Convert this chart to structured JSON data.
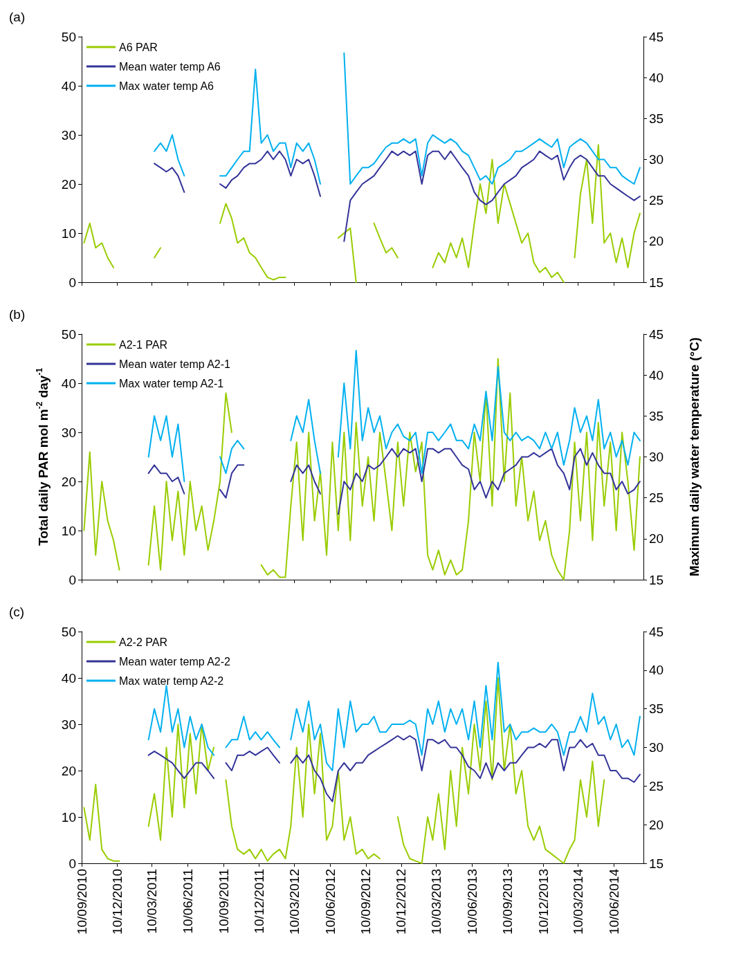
{
  "chart_data": [
    {
      "type": "line",
      "title": "(a)",
      "x": [
        "2010-09-16",
        "2010-10-01",
        "2010-10-16",
        "2010-11-01",
        "2010-11-16",
        "2010-12-01",
        "2010-12-16",
        "2011-01-01",
        "2011-01-16",
        "2011-02-01",
        "2011-02-16",
        "2011-03-01",
        "2011-03-16",
        "2011-04-01",
        "2011-04-16",
        "2011-05-01",
        "2011-05-16",
        "2011-06-01",
        "2011-06-16",
        "2011-07-01",
        "2011-07-16",
        "2011-08-01",
        "2011-08-16",
        "2011-09-01",
        "2011-09-16",
        "2011-10-01",
        "2011-10-16",
        "2011-11-01",
        "2011-11-16",
        "2011-12-01",
        "2011-12-16",
        "2012-01-01",
        "2012-01-16",
        "2012-02-01",
        "2012-02-16",
        "2012-03-01",
        "2012-03-16",
        "2012-04-01",
        "2012-04-16",
        "2012-05-01",
        "2012-05-16",
        "2012-06-01",
        "2012-06-16",
        "2012-07-01",
        "2012-07-16",
        "2012-08-01",
        "2012-08-16",
        "2012-09-01",
        "2012-09-16",
        "2012-10-01",
        "2012-10-16",
        "2012-11-01",
        "2012-11-16",
        "2012-12-01",
        "2012-12-16",
        "2013-01-01",
        "2013-01-16",
        "2013-02-01",
        "2013-02-16",
        "2013-03-01",
        "2013-03-16",
        "2013-04-01",
        "2013-04-16",
        "2013-05-01",
        "2013-05-16",
        "2013-06-01",
        "2013-06-16",
        "2013-07-01",
        "2013-07-16",
        "2013-08-01",
        "2013-08-16",
        "2013-09-01",
        "2013-09-16",
        "2013-10-01",
        "2013-10-16",
        "2013-11-01",
        "2013-11-16",
        "2013-12-01",
        "2013-12-16",
        "2014-01-01",
        "2014-01-16",
        "2014-02-01",
        "2014-02-16",
        "2014-03-01",
        "2014-03-16",
        "2014-04-01",
        "2014-04-16",
        "2014-05-01",
        "2014-05-16",
        "2014-06-01",
        "2014-06-16",
        "2014-07-01",
        "2014-07-16",
        "2014-08-01",
        "2014-08-16"
      ],
      "xlim": [
        "2010-09-10",
        "2014-08-25"
      ],
      "xticks": [
        {
          "value": "2010-09-10",
          "label": null
        },
        {
          "value": "2010-12-10",
          "label": null
        },
        {
          "value": "2011-03-10",
          "label": null
        },
        {
          "value": "2011-06-10",
          "label": null
        },
        {
          "value": "2011-09-10",
          "label": null
        },
        {
          "value": "2011-12-10",
          "label": null
        },
        {
          "value": "2012-03-10",
          "label": null
        },
        {
          "value": "2012-06-10",
          "label": null
        },
        {
          "value": "2012-09-10",
          "label": null
        },
        {
          "value": "2012-12-10",
          "label": null
        },
        {
          "value": "2013-03-10",
          "label": null
        },
        {
          "value": "2013-06-10",
          "label": null
        },
        {
          "value": "2013-09-10",
          "label": null
        },
        {
          "value": "2013-12-10",
          "label": null
        },
        {
          "value": "2014-03-10",
          "label": null
        },
        {
          "value": "2014-06-10",
          "label": null
        }
      ],
      "ylim": [
        0,
        50
      ],
      "yticks": [
        0,
        10,
        20,
        30,
        40,
        50
      ],
      "y2lim": [
        15,
        45
      ],
      "y2ticks": [
        15,
        20,
        25,
        30,
        35,
        40,
        45
      ],
      "legend": "top left",
      "marker": "none",
      "grid": false,
      "tick_labels": "y",
      "series": [
        {
          "name": "A6 PAR",
          "color": "#99cc00",
          "values": [
            8,
            12,
            7,
            8,
            5,
            3,
            null,
            null,
            null,
            null,
            null,
            null,
            5,
            7,
            null,
            null,
            null,
            null,
            null,
            null,
            null,
            null,
            null,
            12,
            16,
            13,
            8,
            9,
            6,
            5,
            3,
            1,
            0.5,
            1,
            1,
            null,
            null,
            null,
            null,
            null,
            null,
            null,
            null,
            9,
            10,
            11,
            0,
            null,
            null,
            12,
            9,
            6,
            7,
            5,
            null,
            null,
            null,
            null,
            null,
            3,
            6,
            4,
            8,
            5,
            9,
            3,
            12,
            20,
            14,
            25,
            12,
            20,
            16,
            12,
            8,
            10,
            4,
            2,
            3,
            1,
            2,
            0,
            null,
            5,
            18,
            25,
            12,
            28,
            8,
            10,
            4,
            9,
            3,
            10,
            14
          ]
        },
        {
          "name": "Mean water temp A6",
          "color": "#333399",
          "axis": "y2",
          "values": [
            null,
            null,
            null,
            null,
            null,
            null,
            null,
            null,
            null,
            null,
            null,
            null,
            29.5,
            29,
            28.5,
            29,
            28,
            26,
            null,
            null,
            null,
            null,
            null,
            27,
            26.5,
            27.5,
            28,
            29,
            29.5,
            29.5,
            30,
            31,
            30,
            31,
            30,
            28,
            30,
            29.5,
            30,
            28,
            25.5,
            null,
            null,
            null,
            20,
            25,
            26,
            27,
            27.5,
            28,
            29,
            30,
            31,
            30.5,
            31,
            30.5,
            31,
            27,
            30.5,
            31,
            31,
            30,
            31,
            30,
            29,
            28,
            26,
            25,
            24.5,
            25,
            26,
            27,
            27.5,
            28,
            29,
            29.5,
            30,
            31,
            30.5,
            30,
            30.5,
            27.5,
            29,
            30,
            30.5,
            30,
            29,
            28,
            28,
            27,
            26.5,
            26,
            25.5,
            25,
            25.5
          ]
        },
        {
          "name": "Max water temp A6",
          "color": "#00b0f0",
          "axis": "y2",
          "values": [
            null,
            null,
            null,
            null,
            null,
            null,
            null,
            null,
            null,
            null,
            null,
            null,
            31,
            32,
            31,
            33,
            30,
            28,
            null,
            null,
            null,
            null,
            null,
            28,
            28,
            29,
            30,
            31,
            31,
            41,
            32,
            33,
            31,
            32,
            32,
            29,
            32,
            31,
            32,
            30,
            27,
            null,
            null,
            null,
            43,
            27,
            28,
            29,
            29,
            29.5,
            30.5,
            31.5,
            32,
            32,
            32.5,
            32,
            32.5,
            28,
            32,
            33,
            32.5,
            32,
            32.5,
            32,
            31,
            30.5,
            29,
            27.5,
            28,
            27,
            29,
            29.5,
            30,
            31,
            31,
            31.5,
            32,
            32.5,
            32,
            31.5,
            32.5,
            29,
            31.5,
            32,
            32.5,
            32,
            31,
            30,
            30,
            29,
            29,
            28,
            27.5,
            27,
            29
          ]
        }
      ]
    },
    {
      "type": "line",
      "title": "(b)",
      "ylabel": "Total daily PAR mol m$^{-2}$ day$^{-1}$",
      "y2label": "Maximum daily water temperature (°C)",
      "x": [
        "2010-09-16",
        "2010-10-01",
        "2010-10-16",
        "2010-11-01",
        "2010-11-16",
        "2010-12-01",
        "2010-12-16",
        "2011-01-01",
        "2011-01-16",
        "2011-02-01",
        "2011-02-16",
        "2011-03-01",
        "2011-03-16",
        "2011-04-01",
        "2011-04-16",
        "2011-05-01",
        "2011-05-16",
        "2011-06-01",
        "2011-06-16",
        "2011-07-01",
        "2011-07-16",
        "2011-08-01",
        "2011-08-16",
        "2011-09-01",
        "2011-09-16",
        "2011-10-01",
        "2011-10-16",
        "2011-11-01",
        "2011-11-16",
        "2011-12-01",
        "2011-12-16",
        "2012-01-01",
        "2012-01-16",
        "2012-02-01",
        "2012-02-16",
        "2012-03-01",
        "2012-03-16",
        "2012-04-01",
        "2012-04-16",
        "2012-05-01",
        "2012-05-16",
        "2012-06-01",
        "2012-06-16",
        "2012-07-01",
        "2012-07-16",
        "2012-08-01",
        "2012-08-16",
        "2012-09-01",
        "2012-09-16",
        "2012-10-01",
        "2012-10-16",
        "2012-11-01",
        "2012-11-16",
        "2012-12-01",
        "2012-12-16",
        "2013-01-01",
        "2013-01-16",
        "2013-02-01",
        "2013-02-16",
        "2013-03-01",
        "2013-03-16",
        "2013-04-01",
        "2013-04-16",
        "2013-05-01",
        "2013-05-16",
        "2013-06-01",
        "2013-06-16",
        "2013-07-01",
        "2013-07-16",
        "2013-08-01",
        "2013-08-16",
        "2013-09-01",
        "2013-09-16",
        "2013-10-01",
        "2013-10-16",
        "2013-11-01",
        "2013-11-16",
        "2013-12-01",
        "2013-12-16",
        "2014-01-01",
        "2014-01-16",
        "2014-02-01",
        "2014-02-16",
        "2014-03-01",
        "2014-03-16",
        "2014-04-01",
        "2014-04-16",
        "2014-05-01",
        "2014-05-16",
        "2014-06-01",
        "2014-06-16",
        "2014-07-01",
        "2014-07-16",
        "2014-08-01",
        "2014-08-16"
      ],
      "xlim": [
        "2010-09-10",
        "2014-08-25"
      ],
      "xticks": [
        {
          "value": "2010-09-10",
          "label": null
        },
        {
          "value": "2010-12-10",
          "label": null
        },
        {
          "value": "2011-03-10",
          "label": null
        },
        {
          "value": "2011-06-10",
          "label": null
        },
        {
          "value": "2011-09-10",
          "label": null
        },
        {
          "value": "2011-12-10",
          "label": null
        },
        {
          "value": "2012-03-10",
          "label": null
        },
        {
          "value": "2012-06-10",
          "label": null
        },
        {
          "value": "2012-09-10",
          "label": null
        },
        {
          "value": "2012-12-10",
          "label": null
        },
        {
          "value": "2013-03-10",
          "label": null
        },
        {
          "value": "2013-06-10",
          "label": null
        },
        {
          "value": "2013-09-10",
          "label": null
        },
        {
          "value": "2013-12-10",
          "label": null
        },
        {
          "value": "2014-03-10",
          "label": null
        },
        {
          "value": "2014-06-10",
          "label": null
        }
      ],
      "ylim": [
        0,
        50
      ],
      "yticks": [
        0,
        10,
        20,
        30,
        40,
        50
      ],
      "y2lim": [
        15,
        45
      ],
      "y2ticks": [
        15,
        20,
        25,
        30,
        35,
        40,
        45
      ],
      "legend": "top left",
      "marker": "none",
      "grid": false,
      "tick_labels": "y",
      "series": [
        {
          "name": "A2-1 PAR",
          "color": "#99cc00",
          "values": [
            10,
            26,
            5,
            20,
            12,
            8,
            2,
            null,
            null,
            null,
            null,
            3,
            15,
            2,
            20,
            8,
            18,
            5,
            20,
            10,
            15,
            6,
            12,
            20,
            38,
            30,
            null,
            null,
            null,
            null,
            3,
            1,
            2,
            0.5,
            0.5,
            15,
            28,
            8,
            30,
            12,
            22,
            5,
            28,
            10,
            30,
            8,
            32,
            15,
            25,
            12,
            30,
            20,
            10,
            28,
            15,
            30,
            22,
            28,
            5,
            2,
            6,
            1,
            4,
            1,
            2,
            12,
            30,
            20,
            38,
            15,
            45,
            20,
            38,
            15,
            25,
            12,
            18,
            8,
            12,
            5,
            2,
            0,
            10,
            28,
            12,
            30,
            8,
            32,
            15,
            28,
            10,
            30,
            20,
            6,
            25
          ]
        },
        {
          "name": "Mean water temp A2-1",
          "color": "#333399",
          "axis": "y2",
          "values": [
            null,
            null,
            null,
            null,
            null,
            null,
            null,
            null,
            null,
            null,
            null,
            28,
            29,
            28,
            28,
            27,
            27.5,
            25.5,
            null,
            null,
            null,
            null,
            null,
            26,
            25,
            28,
            29,
            29,
            null,
            null,
            null,
            null,
            null,
            null,
            null,
            27,
            29,
            28,
            29,
            27,
            25.5,
            null,
            null,
            23,
            27,
            26,
            28,
            27,
            29,
            28.5,
            29,
            30,
            31,
            30,
            31,
            30.5,
            31,
            27,
            31,
            31,
            30.5,
            31,
            31,
            30,
            29,
            28.5,
            26,
            27,
            25,
            27,
            26,
            28,
            28.5,
            29,
            30,
            30,
            30.5,
            30,
            30.5,
            31,
            29,
            28,
            26,
            30,
            31,
            29,
            30.5,
            29,
            28,
            28,
            26,
            27,
            25.5,
            26,
            27
          ]
        },
        {
          "name": "Max water temp A2-1",
          "color": "#00b0f0",
          "axis": "y2",
          "values": [
            null,
            null,
            null,
            null,
            null,
            null,
            null,
            null,
            null,
            null,
            null,
            30,
            35,
            32,
            35,
            30,
            34,
            27,
            null,
            null,
            null,
            null,
            null,
            30,
            28,
            31,
            32,
            31,
            null,
            null,
            null,
            null,
            null,
            null,
            null,
            32,
            35,
            33,
            37,
            32,
            28,
            null,
            null,
            30,
            39,
            31,
            43,
            32,
            36,
            33,
            35,
            31,
            33,
            34,
            32.5,
            32,
            33,
            28,
            33,
            33,
            32,
            33,
            34,
            32,
            32,
            31,
            34,
            32,
            38,
            32,
            41,
            33,
            32,
            33,
            32,
            32.5,
            32,
            31,
            33,
            31,
            33,
            29,
            32,
            36,
            33,
            35,
            32,
            37,
            31,
            33,
            30,
            32,
            29,
            33,
            32
          ]
        }
      ]
    },
    {
      "type": "line",
      "title": "(c)",
      "x": [
        "2010-09-16",
        "2010-10-01",
        "2010-10-16",
        "2010-11-01",
        "2010-11-16",
        "2010-12-01",
        "2010-12-16",
        "2011-01-01",
        "2011-01-16",
        "2011-02-01",
        "2011-02-16",
        "2011-03-01",
        "2011-03-16",
        "2011-04-01",
        "2011-04-16",
        "2011-05-01",
        "2011-05-16",
        "2011-06-01",
        "2011-06-16",
        "2011-07-01",
        "2011-07-16",
        "2011-08-01",
        "2011-08-16",
        "2011-09-01",
        "2011-09-16",
        "2011-10-01",
        "2011-10-16",
        "2011-11-01",
        "2011-11-16",
        "2011-12-01",
        "2011-12-16",
        "2012-01-01",
        "2012-01-16",
        "2012-02-01",
        "2012-02-16",
        "2012-03-01",
        "2012-03-16",
        "2012-04-01",
        "2012-04-16",
        "2012-05-01",
        "2012-05-16",
        "2012-06-01",
        "2012-06-16",
        "2012-07-01",
        "2012-07-16",
        "2012-08-01",
        "2012-08-16",
        "2012-09-01",
        "2012-09-16",
        "2012-10-01",
        "2012-10-16",
        "2012-11-01",
        "2012-11-16",
        "2012-12-01",
        "2012-12-16",
        "2013-01-01",
        "2013-01-16",
        "2013-02-01",
        "2013-02-16",
        "2013-03-01",
        "2013-03-16",
        "2013-04-01",
        "2013-04-16",
        "2013-05-01",
        "2013-05-16",
        "2013-06-01",
        "2013-06-16",
        "2013-07-01",
        "2013-07-16",
        "2013-08-01",
        "2013-08-16",
        "2013-09-01",
        "2013-09-16",
        "2013-10-01",
        "2013-10-16",
        "2013-11-01",
        "2013-11-16",
        "2013-12-01",
        "2013-12-16",
        "2014-01-01",
        "2014-01-16",
        "2014-02-01",
        "2014-02-16",
        "2014-03-01",
        "2014-03-16",
        "2014-04-01",
        "2014-04-16",
        "2014-05-01",
        "2014-05-16",
        "2014-06-01",
        "2014-06-16",
        "2014-07-01",
        "2014-07-16",
        "2014-08-01",
        "2014-08-16"
      ],
      "xlim": [
        "2010-09-10",
        "2014-08-25"
      ],
      "xticks": [
        {
          "value": "2010-09-10",
          "label": "10/09/2010"
        },
        {
          "value": "2010-12-10",
          "label": "10/12/2010"
        },
        {
          "value": "2011-03-10",
          "label": "10/03/2011"
        },
        {
          "value": "2011-06-10",
          "label": "10/06/2011"
        },
        {
          "value": "2011-09-10",
          "label": "10/09/2011"
        },
        {
          "value": "2011-12-10",
          "label": "10/12/2011"
        },
        {
          "value": "2012-03-10",
          "label": "10/03/2012"
        },
        {
          "value": "2012-06-10",
          "label": "10/06/2012"
        },
        {
          "value": "2012-09-10",
          "label": "10/09/2012"
        },
        {
          "value": "2012-12-10",
          "label": "10/12/2012"
        },
        {
          "value": "2013-03-10",
          "label": "10/03/2013"
        },
        {
          "value": "2013-06-10",
          "label": "10/06/2013"
        },
        {
          "value": "2013-09-10",
          "label": "10/09/2013"
        },
        {
          "value": "2013-12-10",
          "label": "10/12/2013"
        },
        {
          "value": "2014-03-10",
          "label": "10/03/2014"
        },
        {
          "value": "2014-06-10",
          "label": "10/06/2014"
        }
      ],
      "ylim": [
        0,
        50
      ],
      "yticks": [
        0,
        10,
        20,
        30,
        40,
        50
      ],
      "y2lim": [
        15,
        45
      ],
      "y2ticks": [
        15,
        20,
        25,
        30,
        35,
        40,
        45
      ],
      "legend": "top left",
      "marker": "none",
      "grid": false,
      "series": [
        {
          "name": "A2-2 PAR",
          "color": "#99cc00",
          "values": [
            12,
            5,
            17,
            3,
            1,
            0.5,
            0.5,
            null,
            null,
            null,
            null,
            8,
            15,
            5,
            25,
            10,
            30,
            12,
            28,
            15,
            30,
            20,
            25,
            null,
            18,
            8,
            3,
            2,
            3,
            1,
            3,
            0.5,
            2,
            3,
            1,
            8,
            25,
            10,
            30,
            15,
            28,
            5,
            8,
            20,
            5,
            10,
            2,
            3,
            1,
            2,
            1,
            null,
            null,
            10,
            4,
            1,
            0.5,
            0,
            10,
            5,
            15,
            3,
            20,
            8,
            25,
            15,
            30,
            20,
            35,
            18,
            40,
            20,
            30,
            15,
            20,
            8,
            5,
            8,
            3,
            2,
            1,
            0,
            3,
            5,
            18,
            10,
            22,
            8,
            18,
            null,
            null,
            null,
            null,
            null,
            null
          ]
        },
        {
          "name": "Mean water temp A2-2",
          "color": "#333399",
          "axis": "y2",
          "values": [
            null,
            null,
            null,
            null,
            null,
            null,
            null,
            null,
            null,
            null,
            null,
            29,
            29.5,
            29,
            28.5,
            28,
            27,
            26,
            27,
            28,
            28,
            27,
            26,
            null,
            28,
            27,
            29,
            29,
            29.5,
            29,
            29.5,
            30,
            29,
            28,
            null,
            28,
            29,
            28,
            29,
            27,
            26,
            24,
            23,
            27,
            28,
            27,
            28,
            28,
            29,
            29.5,
            30,
            30.5,
            31,
            31.5,
            31,
            31.5,
            31,
            27,
            31,
            31,
            30.5,
            31,
            30,
            30,
            29,
            27.5,
            27,
            26,
            28,
            26,
            28,
            27,
            28,
            28,
            29,
            30,
            30,
            30.5,
            30,
            31,
            31,
            27,
            30,
            30,
            31,
            30,
            30.5,
            29,
            29,
            27,
            27,
            26,
            26,
            25.5,
            26.5
          ]
        },
        {
          "name": "Max water temp A2-2",
          "color": "#00b0f0",
          "axis": "y2",
          "values": [
            null,
            null,
            null,
            null,
            null,
            null,
            null,
            null,
            null,
            null,
            null,
            31,
            35,
            32,
            38,
            32,
            35,
            30,
            34,
            31,
            33,
            30,
            29,
            null,
            30,
            31,
            31,
            34,
            31,
            32,
            31,
            32,
            31,
            30,
            null,
            31,
            35,
            32,
            36,
            31,
            33,
            28,
            27,
            35,
            30,
            36,
            32,
            33,
            33,
            34,
            32,
            32,
            33,
            33,
            33,
            33.5,
            33,
            29,
            35,
            33,
            36,
            32,
            35,
            33,
            35,
            31,
            36,
            30,
            38,
            31,
            41,
            32,
            33,
            31,
            32,
            32,
            32.5,
            32,
            32,
            33,
            32,
            29,
            32,
            32,
            34,
            32,
            37,
            33,
            34,
            31,
            33,
            30,
            31,
            29,
            34
          ]
        }
      ]
    }
  ]
}
